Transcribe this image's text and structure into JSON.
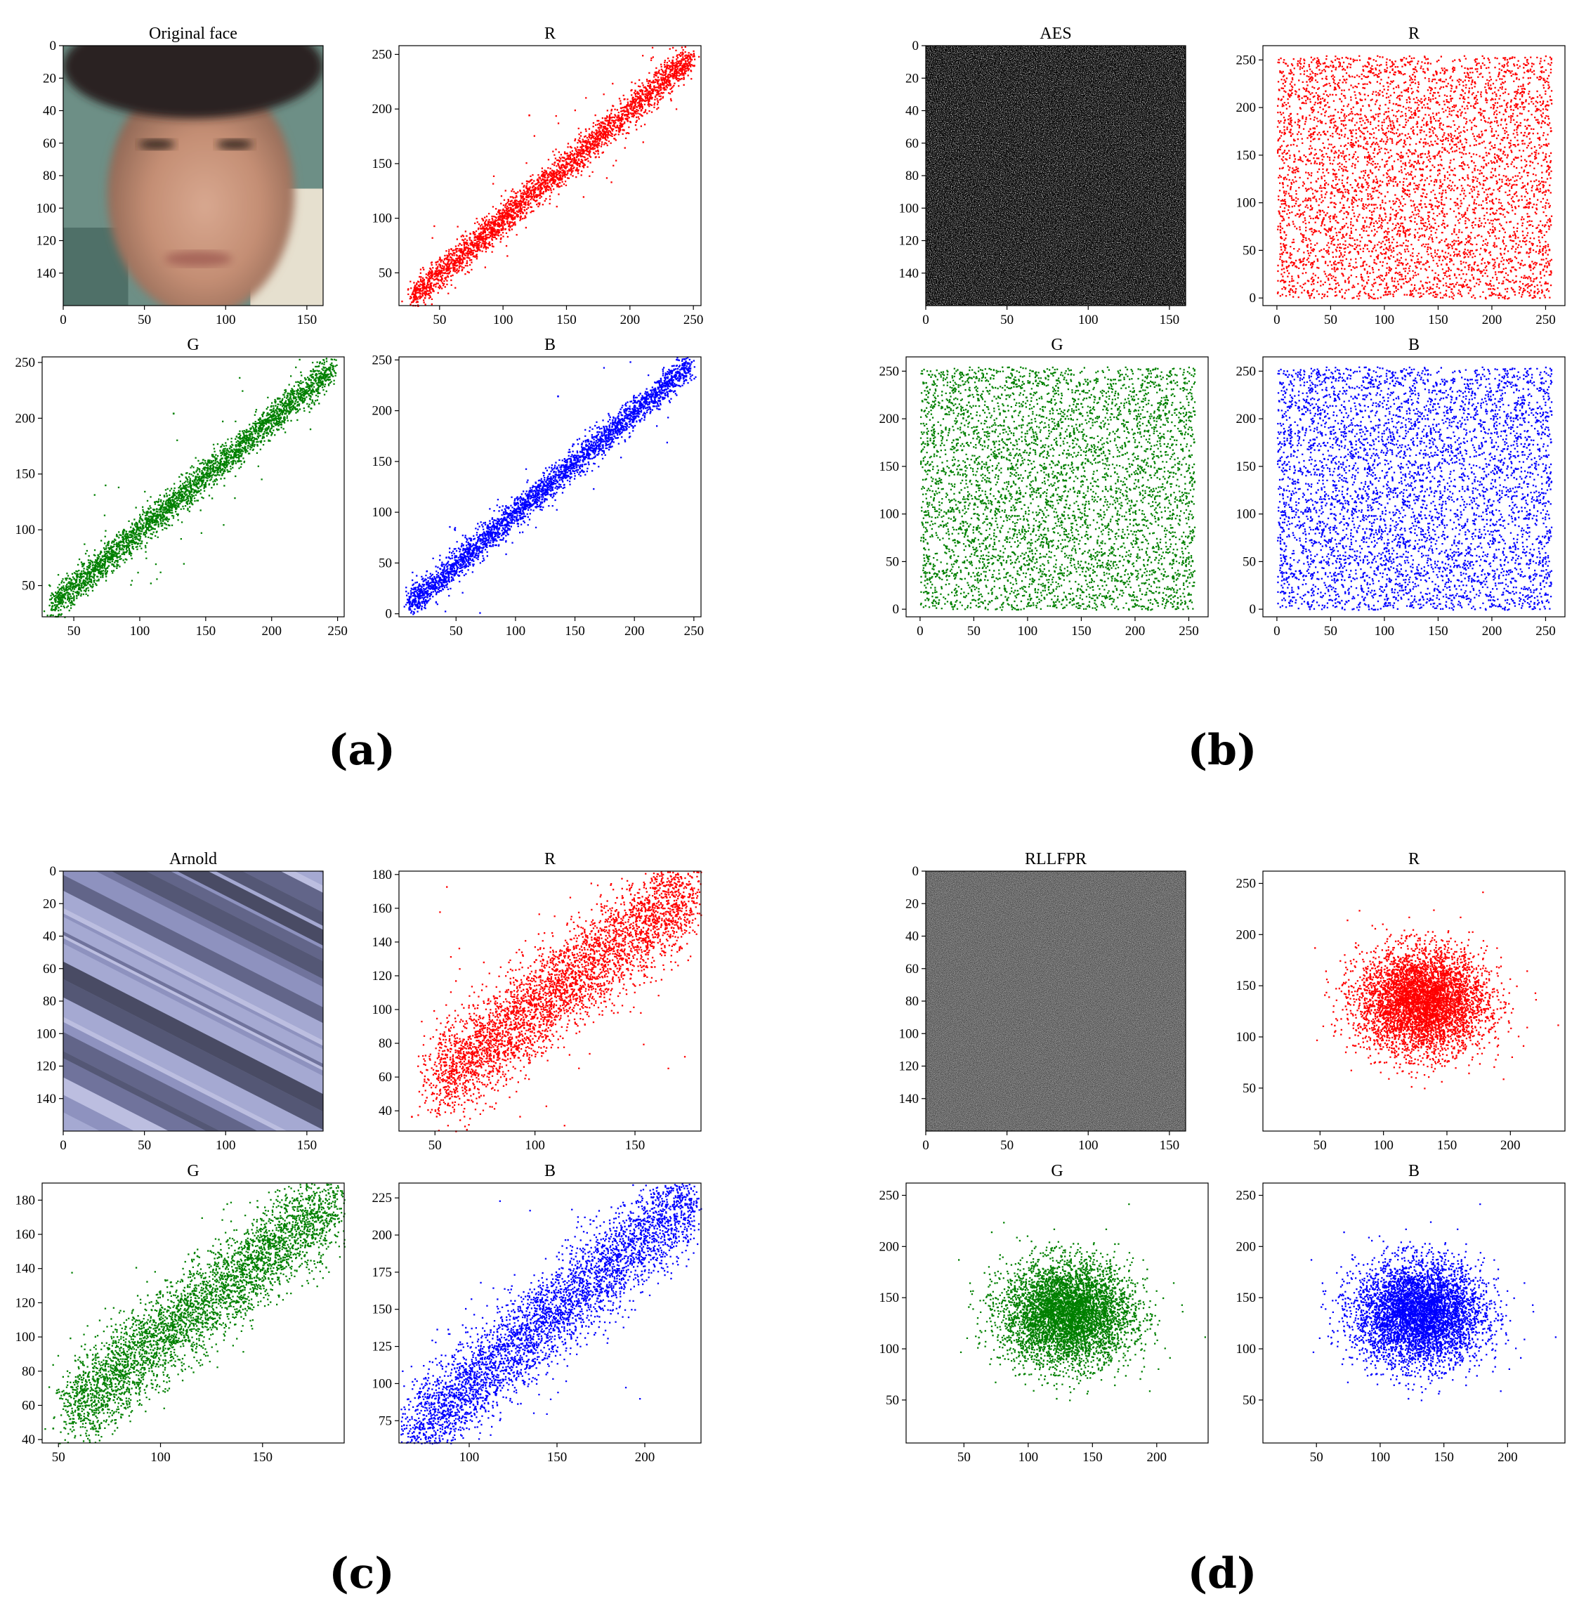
{
  "figure": {
    "panel_labels": [
      "(a)",
      "(b)",
      "(c)",
      "(d)"
    ]
  },
  "chart_data": [
    {
      "group": "(a)",
      "type": "image",
      "title": "Original face",
      "image": "face-photo",
      "xticks": [
        0,
        50,
        100,
        150
      ],
      "yticks": [
        0,
        20,
        40,
        60,
        80,
        100,
        120,
        140
      ],
      "xlim": [
        0,
        160
      ],
      "ylim": [
        0,
        160
      ]
    },
    {
      "group": "(a)",
      "type": "scatter",
      "title": "R",
      "color": "#ff0000",
      "xlim": [
        18,
        256
      ],
      "ylim": [
        20,
        258
      ],
      "xticks": [
        50,
        100,
        150,
        200,
        250
      ],
      "yticks": [
        50,
        100,
        150,
        200,
        250
      ],
      "distribution": {
        "kind": "linear",
        "x_range": [
          27,
          248
        ],
        "slope": 1,
        "intercept": 0,
        "spread": 7,
        "n": 3000,
        "outliers": 80
      },
      "points_sample": [
        [
          27,
          28
        ],
        [
          60,
          62
        ],
        [
          100,
          101
        ],
        [
          120,
          195
        ],
        [
          150,
          150
        ],
        [
          200,
          201
        ],
        [
          248,
          246
        ]
      ]
    },
    {
      "group": "(a)",
      "type": "scatter",
      "title": "G",
      "color": "#008000",
      "xlim": [
        26,
        255
      ],
      "ylim": [
        22,
        255
      ],
      "xticks": [
        50,
        100,
        150,
        200,
        250
      ],
      "yticks": [
        50,
        100,
        150,
        200,
        250
      ],
      "distribution": {
        "kind": "linear",
        "x_range": [
          33,
          246
        ],
        "slope": 1,
        "intercept": 0,
        "spread": 7,
        "n": 3000,
        "outliers": 70
      },
      "points_sample": [
        [
          33,
          32
        ],
        [
          60,
          62
        ],
        [
          100,
          102
        ],
        [
          125,
          205
        ],
        [
          150,
          150
        ],
        [
          200,
          199
        ],
        [
          246,
          245
        ]
      ]
    },
    {
      "group": "(a)",
      "type": "scatter",
      "title": "B",
      "color": "#0000ff",
      "xlim": [
        2,
        256
      ],
      "ylim": [
        -3,
        253
      ],
      "xticks": [
        50,
        100,
        150,
        200,
        250
      ],
      "yticks": [
        0,
        50,
        100,
        150,
        200,
        250
      ],
      "distribution": {
        "kind": "linear",
        "x_range": [
          10,
          246
        ],
        "slope": 1,
        "intercept": 0,
        "spread": 7,
        "n": 3000,
        "outliers": 80
      },
      "points_sample": [
        [
          10,
          12
        ],
        [
          60,
          60
        ],
        [
          100,
          100
        ],
        [
          135,
          215
        ],
        [
          150,
          150
        ],
        [
          200,
          200
        ],
        [
          246,
          245
        ]
      ]
    },
    {
      "group": "(b)",
      "type": "image",
      "title": "AES",
      "image": "noise-gray-bw",
      "xticks": [
        0,
        50,
        100,
        150
      ],
      "yticks": [
        0,
        20,
        40,
        60,
        80,
        100,
        120,
        140
      ],
      "xlim": [
        0,
        160
      ],
      "ylim": [
        0,
        160
      ]
    },
    {
      "group": "(b)",
      "type": "scatter",
      "title": "R",
      "color": "#ff0000",
      "xlim": [
        -13,
        268
      ],
      "ylim": [
        -8,
        265
      ],
      "xticks": [
        0,
        50,
        100,
        150,
        200,
        250
      ],
      "yticks": [
        0,
        50,
        100,
        150,
        200,
        250
      ],
      "distribution": {
        "kind": "uniform",
        "range": [
          0,
          255
        ],
        "n": 5000
      }
    },
    {
      "group": "(b)",
      "type": "scatter",
      "title": "G",
      "color": "#008000",
      "xlim": [
        -13,
        268
      ],
      "ylim": [
        -8,
        265
      ],
      "xticks": [
        0,
        50,
        100,
        150,
        200,
        250
      ],
      "yticks": [
        0,
        50,
        100,
        150,
        200,
        250
      ],
      "distribution": {
        "kind": "uniform",
        "range": [
          0,
          255
        ],
        "n": 5000
      }
    },
    {
      "group": "(b)",
      "type": "scatter",
      "title": "B",
      "color": "#0000ff",
      "xlim": [
        -13,
        268
      ],
      "ylim": [
        -8,
        265
      ],
      "xticks": [
        0,
        50,
        100,
        150,
        200,
        250
      ],
      "yticks": [
        0,
        50,
        100,
        150,
        200,
        250
      ],
      "distribution": {
        "kind": "uniform",
        "range": [
          0,
          255
        ],
        "n": 5000
      }
    },
    {
      "group": "(c)",
      "type": "image",
      "title": "Arnold",
      "image": "diagonal-stripes",
      "xticks": [
        0,
        50,
        100,
        150
      ],
      "yticks": [
        0,
        20,
        40,
        60,
        80,
        100,
        120,
        140
      ],
      "xlim": [
        0,
        160
      ],
      "ylim": [
        0,
        160
      ]
    },
    {
      "group": "(c)",
      "type": "scatter",
      "title": "R",
      "color": "#ff0000",
      "xlim": [
        32,
        183
      ],
      "ylim": [
        28,
        182
      ],
      "xticks": [
        50,
        100,
        150
      ],
      "yticks": [
        40,
        60,
        80,
        100,
        120,
        140,
        160,
        180
      ],
      "distribution": {
        "kind": "linear",
        "x_range": [
          50,
          178
        ],
        "slope": 0.9,
        "intercept": 12,
        "spread": 14,
        "n": 4000,
        "outliers": 40
      },
      "points_sample": [
        [
          38,
          37
        ],
        [
          55,
          58
        ],
        [
          100,
          100
        ],
        [
          120,
          118
        ],
        [
          150,
          145
        ],
        [
          178,
          172
        ]
      ]
    },
    {
      "group": "(c)",
      "type": "scatter",
      "title": "G",
      "color": "#008000",
      "xlim": [
        42,
        190
      ],
      "ylim": [
        38,
        190
      ],
      "xticks": [
        50,
        100,
        150
      ],
      "yticks": [
        40,
        60,
        80,
        100,
        120,
        140,
        160,
        180
      ],
      "distribution": {
        "kind": "linear",
        "x_range": [
          55,
          185
        ],
        "slope": 0.95,
        "intercept": 5,
        "spread": 13,
        "n": 4000,
        "outliers": 40
      },
      "points_sample": [
        [
          47,
          47
        ],
        [
          60,
          60
        ],
        [
          100,
          100
        ],
        [
          140,
          138
        ],
        [
          185,
          182
        ]
      ]
    },
    {
      "group": "(c)",
      "type": "scatter",
      "title": "B",
      "color": "#0000ff",
      "xlim": [
        60,
        232
      ],
      "ylim": [
        60,
        235
      ],
      "xticks": [
        100,
        150,
        200
      ],
      "yticks": [
        75,
        100,
        125,
        150,
        175,
        200,
        225
      ],
      "distribution": {
        "kind": "linear",
        "x_range": [
          68,
          226
        ],
        "slope": 1,
        "intercept": 0,
        "spread": 15,
        "n": 4000,
        "outliers": 40
      },
      "points_sample": [
        [
          68,
          68
        ],
        [
          100,
          100
        ],
        [
          150,
          150
        ],
        [
          200,
          200
        ],
        [
          226,
          225
        ]
      ]
    },
    {
      "group": "(d)",
      "type": "image",
      "title": "RLLFPR",
      "image": "noise-gray-fine",
      "xticks": [
        0,
        50,
        100,
        150
      ],
      "yticks": [
        0,
        20,
        40,
        60,
        80,
        100,
        120,
        140
      ],
      "xlim": [
        0,
        160
      ],
      "ylim": [
        0,
        160
      ]
    },
    {
      "group": "(d)",
      "type": "scatter",
      "title": "R",
      "color": "#ff0000",
      "xlim": [
        5,
        243
      ],
      "ylim": [
        8,
        262
      ],
      "xticks": [
        50,
        100,
        150,
        200
      ],
      "yticks": [
        50,
        100,
        150,
        200,
        250
      ],
      "distribution": {
        "kind": "gaussian",
        "center": [
          130,
          135
        ],
        "sd": [
          25,
          25
        ],
        "n": 5000
      }
    },
    {
      "group": "(d)",
      "type": "scatter",
      "title": "G",
      "color": "#008000",
      "xlim": [
        5,
        240
      ],
      "ylim": [
        8,
        262
      ],
      "xticks": [
        50,
        100,
        150,
        200
      ],
      "yticks": [
        50,
        100,
        150,
        200,
        250
      ],
      "distribution": {
        "kind": "gaussian",
        "center": [
          130,
          135
        ],
        "sd": [
          25,
          25
        ],
        "n": 5000
      }
    },
    {
      "group": "(d)",
      "type": "scatter",
      "title": "B",
      "color": "#0000ff",
      "xlim": [
        8,
        245
      ],
      "ylim": [
        8,
        262
      ],
      "xticks": [
        50,
        100,
        150,
        200
      ],
      "yticks": [
        50,
        100,
        150,
        200,
        250
      ],
      "distribution": {
        "kind": "gaussian",
        "center": [
          130,
          135
        ],
        "sd": [
          25,
          25
        ],
        "n": 5000
      }
    }
  ]
}
